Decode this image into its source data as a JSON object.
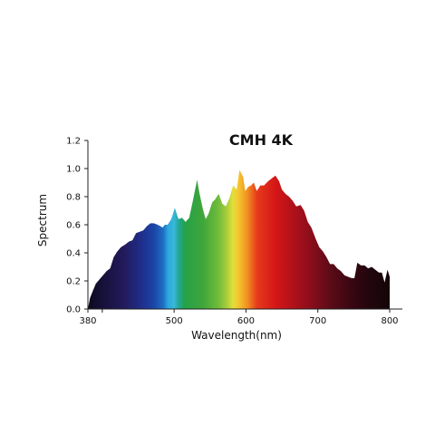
{
  "chart_data": {
    "type": "area",
    "title": "CMH 4K",
    "xlabel": "Wavelength(nm)",
    "ylabel": "Spectrum",
    "xlim": [
      380,
      800
    ],
    "ylim": [
      0,
      1.2
    ],
    "x_ticks": [
      380,
      400,
      500,
      600,
      700,
      800
    ],
    "x_tick_labels": [
      "380",
      "",
      "500",
      "600",
      "700",
      "800"
    ],
    "y_ticks": [
      0,
      0.2,
      0.4,
      0.6,
      0.8,
      1.0,
      1.2
    ],
    "y_tick_labels": [
      "0.0",
      "0.2",
      "0.4",
      "0.6",
      "0.8",
      "1.0",
      "1.2"
    ],
    "grid": false,
    "legend": "none",
    "fill": "visible-spectrum gradient by wavelength",
    "series": [
      {
        "x": [
          380,
          383,
          387,
          391,
          396,
          401,
          406,
          411,
          416,
          421,
          426,
          432,
          437,
          442,
          447,
          452,
          457,
          462,
          467,
          472,
          477,
          481,
          484,
          487,
          491,
          496,
          501,
          506,
          511,
          516,
          521,
          526,
          532,
          535,
          540,
          544,
          548,
          553,
          557,
          562,
          567,
          572,
          577,
          582,
          587,
          591,
          596,
          599,
          603,
          607,
          611,
          615,
          620,
          625,
          631,
          636,
          641,
          646,
          650,
          655,
          660,
          665,
          670,
          676,
          681,
          686,
          691,
          697,
          702,
          707,
          712,
          717,
          722,
          727,
          732,
          737,
          742,
          747,
          751,
          755,
          760,
          765,
          770,
          775,
          780,
          785,
          789,
          793,
          797,
          800
        ],
        "y": [
          0.0,
          0.08,
          0.13,
          0.18,
          0.21,
          0.24,
          0.27,
          0.29,
          0.37,
          0.41,
          0.44,
          0.46,
          0.48,
          0.49,
          0.54,
          0.55,
          0.56,
          0.59,
          0.61,
          0.61,
          0.6,
          0.59,
          0.58,
          0.6,
          0.6,
          0.64,
          0.72,
          0.64,
          0.65,
          0.62,
          0.65,
          0.77,
          0.92,
          0.83,
          0.71,
          0.64,
          0.68,
          0.76,
          0.78,
          0.82,
          0.75,
          0.73,
          0.79,
          0.88,
          0.85,
          0.99,
          0.94,
          0.84,
          0.87,
          0.88,
          0.9,
          0.84,
          0.88,
          0.88,
          0.91,
          0.93,
          0.95,
          0.91,
          0.85,
          0.82,
          0.8,
          0.77,
          0.73,
          0.74,
          0.7,
          0.62,
          0.58,
          0.5,
          0.44,
          0.41,
          0.37,
          0.32,
          0.32,
          0.29,
          0.27,
          0.24,
          0.23,
          0.22,
          0.22,
          0.33,
          0.31,
          0.31,
          0.29,
          0.3,
          0.28,
          0.26,
          0.26,
          0.19,
          0.28,
          0.23
        ]
      }
    ]
  }
}
